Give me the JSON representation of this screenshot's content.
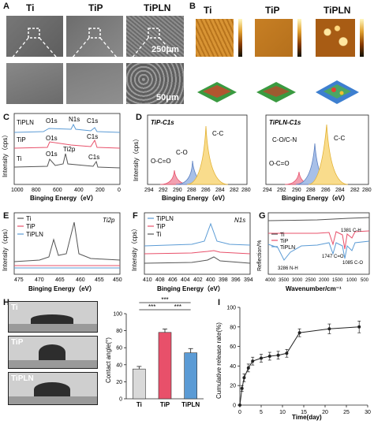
{
  "panels": {
    "A": {
      "label": "A",
      "titles": [
        "Ti",
        "TiP",
        "TiPLN"
      ],
      "scale_top": "250μm",
      "scale_bottom": "50μm"
    },
    "B": {
      "label": "B",
      "titles": [
        "Ti",
        "TiP",
        "TiPLN"
      ]
    },
    "C": {
      "label": "C"
    },
    "D": {
      "label": "D"
    },
    "E": {
      "label": "E"
    },
    "F": {
      "label": "F"
    },
    "G": {
      "label": "G"
    },
    "H": {
      "label": "H",
      "drops": [
        "Ti",
        "TiP",
        "TiPLN"
      ]
    },
    "I": {
      "label": "I"
    }
  },
  "colors": {
    "Ti": "#555555",
    "TiP": "#e8506a",
    "TiPLN": "#5b9bd5",
    "yellow": "#f2c14e",
    "bluepeak": "#7799cc"
  },
  "chart_data": [
    {
      "id": "C",
      "type": "line",
      "xlabel": "Binging Energy（eV）",
      "ylabel": "Intensity（cps）",
      "xticks": [
        "1000",
        "800",
        "600",
        "400",
        "200",
        "0"
      ],
      "legend": [
        "TiPLN",
        "TiP",
        "Ti"
      ],
      "annotations": [
        "O1s",
        "N1s",
        "C1s",
        "O1s",
        "C1s",
        "O1s",
        "Ti2p",
        "C1s"
      ]
    },
    {
      "id": "D1",
      "type": "area",
      "title": "TiP-C1s",
      "xlabel": "Binging Energy（eV）",
      "ylabel": "Intensity（cps）",
      "xticks": [
        "294",
        "292",
        "290",
        "288",
        "286",
        "284",
        "282",
        "280"
      ],
      "peaks": [
        {
          "name": "O-C=O",
          "center": 288.9,
          "height": 0.25
        },
        {
          "name": "C-O",
          "center": 286.4,
          "height": 0.38
        },
        {
          "name": "C-C",
          "center": 284.8,
          "height": 0.95
        }
      ]
    },
    {
      "id": "D2",
      "type": "area",
      "title": "TiPLN-C1s",
      "xlabel": "Binging Energy（eV）",
      "xticks": [
        "294",
        "292",
        "290",
        "288",
        "286",
        "284",
        "282",
        "280"
      ],
      "peaks": [
        {
          "name": "O-C=O",
          "center": 288.4,
          "height": 0.22
        },
        {
          "name": "C-O/C-N",
          "center": 286.3,
          "height": 0.62
        },
        {
          "name": "C-C",
          "center": 284.8,
          "height": 0.95
        }
      ]
    },
    {
      "id": "E",
      "type": "line",
      "title": "Ti2p",
      "xlabel": "Binging Energy（eV）",
      "ylabel": "Intensity（cps）",
      "xticks": [
        "475",
        "470",
        "465",
        "460",
        "455",
        "450"
      ],
      "legend": [
        "Ti",
        "TiP",
        "TiPLN"
      ]
    },
    {
      "id": "F",
      "type": "line",
      "title": "N1s",
      "xlabel": "Binging Energy（eV）",
      "ylabel": "Intensity（cps）",
      "xticks": [
        "410",
        "408",
        "406",
        "404",
        "402",
        "400",
        "398",
        "396",
        "394"
      ],
      "legend": [
        "TiPLN",
        "TiP",
        "Ti"
      ]
    },
    {
      "id": "G",
      "type": "line",
      "xlabel": "Wavenumber/cm⁻¹",
      "ylabel": "Reflection/%",
      "xticks": [
        "4000",
        "3500",
        "3000",
        "2500",
        "2000",
        "1500",
        "1000",
        "500"
      ],
      "legend": [
        "Ti",
        "TiP",
        "TiPLN"
      ],
      "annotations": [
        "1381 C-H",
        "1747 C=O",
        "1085 C-O",
        "3286 N-H"
      ]
    },
    {
      "id": "H",
      "type": "bar",
      "ylabel": "Contact angle(°)",
      "categories": [
        "Ti",
        "TiP",
        "TiPLN"
      ],
      "values": [
        35,
        78,
        54
      ],
      "errors": [
        3,
        4,
        5
      ],
      "ylim": [
        0,
        100
      ],
      "yticks": [
        "0",
        "20",
        "40",
        "60",
        "80",
        "100"
      ],
      "significance": [
        "***",
        "***",
        "***"
      ]
    },
    {
      "id": "I",
      "type": "line",
      "xlabel": "Time(day)",
      "ylabel": "Cumulative release rate(%)",
      "x": [
        0,
        0.5,
        1,
        2,
        3,
        5,
        7,
        9,
        11,
        14,
        21,
        28
      ],
      "y": [
        0,
        17,
        28,
        38,
        45,
        48,
        50,
        51,
        53,
        74,
        78,
        80
      ],
      "errors": [
        0,
        3,
        4,
        4,
        4,
        4,
        4,
        4,
        4,
        4,
        5,
        6
      ],
      "xlim": [
        0,
        30
      ],
      "ylim": [
        0,
        100
      ],
      "xticks": [
        "0",
        "5",
        "10",
        "15",
        "20",
        "25",
        "30"
      ],
      "yticks": [
        "0",
        "20",
        "40",
        "60",
        "80",
        "100"
      ]
    }
  ]
}
